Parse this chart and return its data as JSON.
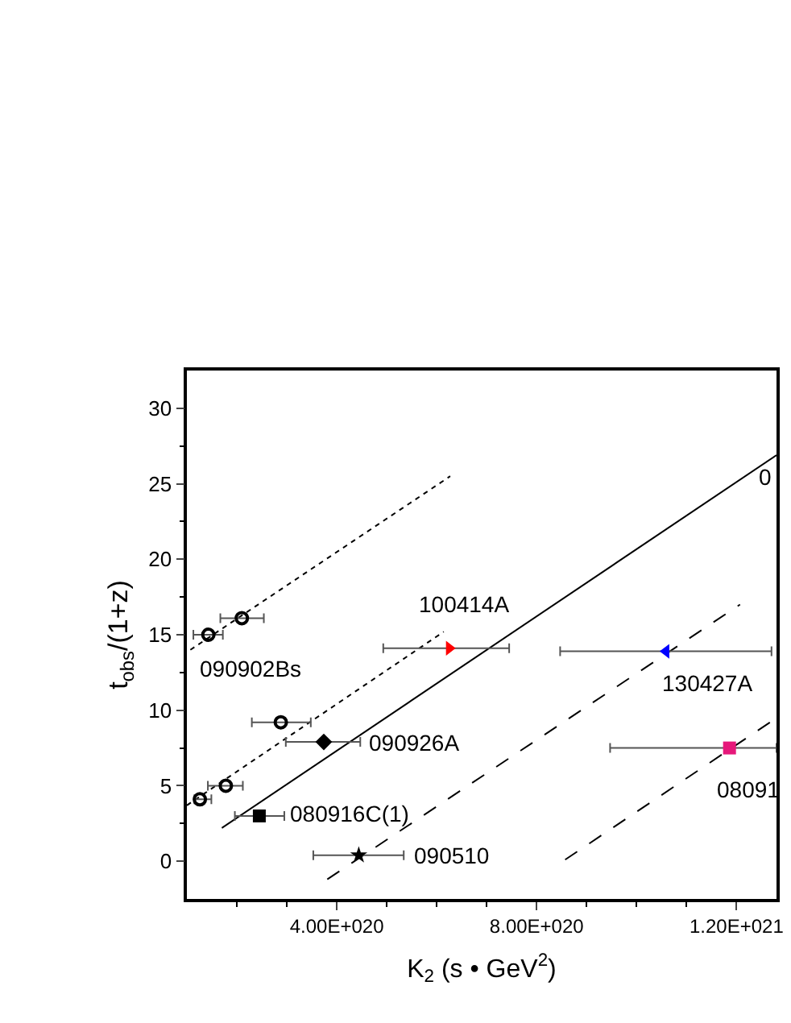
{
  "chart_data": {
    "type": "scatter",
    "xlabel": "K$_{2}$ (s • GeV$^{2}$)",
    "ylabel": "t$_{obs}$/(1+z)",
    "xlim": [
      1e+20,
      1.28e+21
    ],
    "ylim": [
      -2.5,
      32.5
    ],
    "xticks": [
      {
        "value": 2e+20,
        "label": null
      },
      {
        "value": 3e+20,
        "label": null
      },
      {
        "value": 4e+20,
        "label": "4.00E+020"
      },
      {
        "value": 5e+20,
        "label": null
      },
      {
        "value": 6e+20,
        "label": null
      },
      {
        "value": 7e+20,
        "label": null
      },
      {
        "value": 8e+20,
        "label": "8.00E+020"
      },
      {
        "value": 9e+20,
        "label": null
      },
      {
        "value": 1e+21,
        "label": null
      },
      {
        "value": 1.1e+21,
        "label": null
      },
      {
        "value": 1.2e+21,
        "label": "1.20E+021"
      }
    ],
    "yticks": [
      0,
      {
        "value": 2.5,
        "label": null
      },
      5,
      {
        "value": 7.5,
        "label": null
      },
      10,
      {
        "value": 12.5,
        "label": null
      },
      15,
      {
        "value": 17.5,
        "label": null
      },
      20,
      {
        "value": 22.5,
        "label": null
      },
      25,
      {
        "value": 27.5,
        "label": null
      },
      30
    ],
    "legend": false,
    "series": [
      {
        "type": "line",
        "color": "#000000",
        "line_style": "dotted",
        "marker": "none",
        "x": [
          1.07e+20,
          6.27e+20
        ],
        "values": [
          14.0,
          25.5
        ]
      },
      {
        "type": "line",
        "color": "#000000",
        "line_style": "dotted",
        "marker": "none",
        "x": [
          1e+20,
          6.14e+20
        ],
        "values": [
          3.7,
          15.2
        ]
      },
      {
        "type": "line",
        "color": "#000000",
        "line_style": "solid",
        "marker": "none",
        "x": [
          1.7e+20,
          1.28e+21
        ],
        "values": [
          2.2,
          26.9
        ]
      },
      {
        "type": "line",
        "color": "#000000",
        "line_style": "dashed",
        "marker": "none",
        "x": [
          3.81e+20,
          1.207e+21
        ],
        "values": [
          -1.2,
          17.0
        ]
      },
      {
        "type": "line",
        "color": "#000000",
        "line_style": "dashed",
        "marker": "none",
        "x": [
          8.57e+20,
          1.276e+21
        ],
        "values": [
          0.1,
          9.4
        ]
      },
      {
        "color": "#000000",
        "marker": "circle-open",
        "x": [
          1.26e+20,
          1.78e+20,
          2.88e+20,
          1.43e+20,
          2.1e+20
        ],
        "values": [
          4.1,
          5.0,
          9.2,
          15.0,
          16.1
        ],
        "xerrors": [
          [
            1.15e+20,
            1.49e+20
          ],
          [
            1.42e+20,
            2.12e+20
          ],
          [
            2.3e+20,
            3.48e+20
          ],
          [
            1.13e+20,
            1.72e+20
          ],
          [
            1.67e+20,
            2.54e+20
          ]
        ]
      },
      {
        "color": "#000000",
        "marker": "diamond",
        "x": [
          3.74e+20
        ],
        "values": [
          7.9
        ],
        "xerrors": [
          [
            2.98e+20,
            4.47e+20
          ]
        ]
      },
      {
        "color": "#000000",
        "marker": "square",
        "x": [
          2.45e+20
        ],
        "values": [
          3.0
        ],
        "xerrors": [
          [
            1.96e+20,
            2.95e+20
          ]
        ]
      },
      {
        "color": "#000000",
        "marker": "star",
        "x": [
          4.44e+20
        ],
        "values": [
          0.4
        ],
        "xerrors": [
          [
            3.53e+20,
            5.34e+20
          ]
        ]
      },
      {
        "color": "#ff0000",
        "marker": "triangle-right",
        "x": [
          6.25e+20
        ],
        "values": [
          14.1
        ],
        "xerrors": [
          [
            4.93e+20,
            7.45e+20
          ]
        ]
      },
      {
        "color": "#0000ff",
        "marker": "triangle-left",
        "x": [
          1.059e+21
        ],
        "values": [
          13.9
        ],
        "xerrors": [
          [
            8.47e+20,
            1.27e+21
          ]
        ]
      },
      {
        "color": "#e6187a",
        "marker": "square",
        "x": [
          1.186e+21
        ],
        "values": [
          7.5
        ],
        "xerrors": [
          [
            9.47e+20,
            1.28e+21
          ]
        ]
      }
    ],
    "annotations": [
      {
        "text": "090902Bs",
        "x": 1.43e+20,
        "y": 15.0
      },
      {
        "text": "100414A",
        "x": 6.25e+20,
        "y": 14.1
      },
      {
        "text": "090926A",
        "x": 3.74e+20,
        "y": 7.9
      },
      {
        "text": "080916C(1)",
        "x": 2.45e+20,
        "y": 3.0
      },
      {
        "text": "090510",
        "x": 4.44e+20,
        "y": 0.4
      },
      {
        "text": "130427A",
        "x": 1.059e+21,
        "y": 13.9
      },
      {
        "text": "08091",
        "x": 1.186e+21,
        "y": 7.5
      },
      "0"
    ]
  }
}
